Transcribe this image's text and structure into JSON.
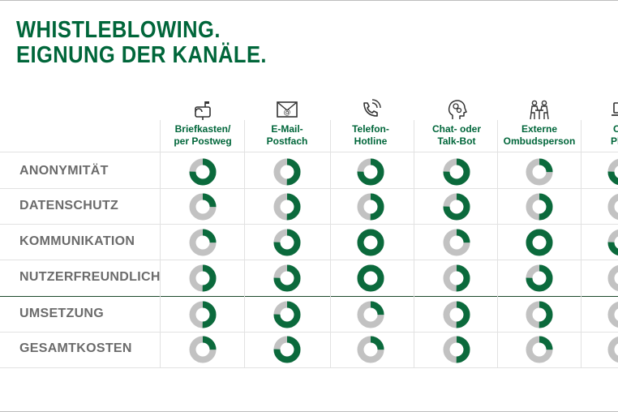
{
  "title": {
    "line1": "WHISTLEBLOWING.",
    "line2": "EIGNUNG DER KANÄLE."
  },
  "colors": {
    "accent": "#00663a",
    "ring_filled": "#0b6a3c",
    "ring_empty": "#c2c2c2",
    "row_text": "#6b6b6b"
  },
  "chart_data": {
    "type": "table",
    "title": "WHISTLEBLOWING. EIGNUNG DER KANÄLE.",
    "columns": [
      {
        "line1": "Briefkasten/",
        "line2": "per Postweg",
        "icon": "mailbox-icon"
      },
      {
        "line1": "E-Mail-",
        "line2": "Postfach",
        "icon": "email-icon"
      },
      {
        "line1": "Telefon-",
        "line2": "Hotline",
        "icon": "phone-icon"
      },
      {
        "line1": "Chat- oder",
        "line2": "Talk-Bot",
        "icon": "brain-gear-icon"
      },
      {
        "line1": "Externe",
        "line2": "Ombudsperson",
        "icon": "meeting-icon"
      },
      {
        "line1": "Onl",
        "line2": "Platt",
        "icon": "laptop-icon"
      }
    ],
    "rows": [
      {
        "label": "ANONYMITÄT",
        "values": [
          75,
          50,
          75,
          75,
          25,
          75
        ]
      },
      {
        "label": "DATENSCHUTZ",
        "values": [
          25,
          50,
          50,
          75,
          50,
          50
        ]
      },
      {
        "label": "KOMMUNIKATION",
        "values": [
          25,
          75,
          100,
          25,
          100,
          75
        ]
      },
      {
        "label": "NUTZERFREUNDLICH",
        "values": [
          50,
          75,
          100,
          50,
          75,
          50
        ]
      },
      {
        "label": "UMSETZUNG",
        "values": [
          50,
          75,
          25,
          50,
          50,
          50
        ]
      },
      {
        "label": "GESAMTKOSTEN",
        "values": [
          25,
          75,
          25,
          50,
          25,
          50
        ]
      }
    ],
    "value_unit": "percent of ring filled"
  }
}
